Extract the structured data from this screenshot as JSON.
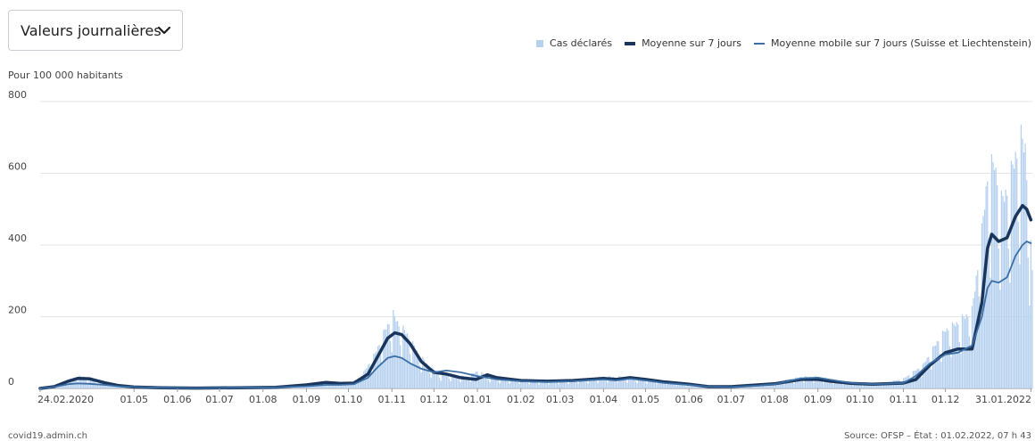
{
  "controls": {
    "dropdown_label": "Valeurs journalières",
    "dropdown_icon": "chevron-down-icon"
  },
  "legend": {
    "cases_label": "Cas déclarés",
    "avg_label": "Moyenne sur 7 jours",
    "ch_label": "Moyenne mobile sur 7 jours (Suisse et Liechtenstein)"
  },
  "colors": {
    "bars": "#b5d0ee",
    "avg_line": "#1a355b",
    "ch_line": "#3a6ea5",
    "grid": "#e3e3e3",
    "axis": "#9a9a9a"
  },
  "chart_data": {
    "type": "bar",
    "unit_label": "Pour 100 000 habitants",
    "ylim": [
      0,
      800
    ],
    "y_ticks": [
      0,
      200,
      400,
      600,
      800
    ],
    "grid": true,
    "legend_position": "top-right",
    "x_start": "2020-02-24",
    "x_end": "2022-02-01",
    "x_ticks": [
      {
        "date": "2020-02-24",
        "label": "24.02.2020"
      },
      {
        "date": "2020-05-01",
        "label": "01.05"
      },
      {
        "date": "2020-06-01",
        "label": "01.06"
      },
      {
        "date": "2020-07-01",
        "label": "01.07"
      },
      {
        "date": "2020-08-01",
        "label": "01.08"
      },
      {
        "date": "2020-09-01",
        "label": "01.09"
      },
      {
        "date": "2020-10-01",
        "label": "01.10"
      },
      {
        "date": "2020-11-01",
        "label": "01.11"
      },
      {
        "date": "2020-12-01",
        "label": "01.12"
      },
      {
        "date": "2021-01-01",
        "label": "01.01"
      },
      {
        "date": "2021-02-01",
        "label": "01.02"
      },
      {
        "date": "2021-03-01",
        "label": "01.03"
      },
      {
        "date": "2021-04-01",
        "label": "01.04"
      },
      {
        "date": "2021-05-01",
        "label": "01.05"
      },
      {
        "date": "2021-06-01",
        "label": "01.06"
      },
      {
        "date": "2021-07-01",
        "label": "01.07"
      },
      {
        "date": "2021-08-01",
        "label": "01.08"
      },
      {
        "date": "2021-09-01",
        "label": "01.09"
      },
      {
        "date": "2021-10-01",
        "label": "01.10"
      },
      {
        "date": "2021-11-01",
        "label": "01.11"
      },
      {
        "date": "2021-12-01",
        "label": "01.12"
      },
      {
        "date": "2022-01-31",
        "label": "31.01.2022"
      }
    ],
    "series": [
      {
        "name": "Cas déclarés",
        "kind": "bar",
        "points": [
          [
            "2020-02-24",
            0
          ],
          [
            "2020-03-05",
            6
          ],
          [
            "2020-03-14",
            20
          ],
          [
            "2020-03-22",
            32
          ],
          [
            "2020-03-28",
            30
          ],
          [
            "2020-04-05",
            18
          ],
          [
            "2020-04-15",
            9
          ],
          [
            "2020-04-25",
            5
          ],
          [
            "2020-05-10",
            2
          ],
          [
            "2020-06-01",
            1
          ],
          [
            "2020-07-01",
            2
          ],
          [
            "2020-08-01",
            3
          ],
          [
            "2020-08-20",
            5
          ],
          [
            "2020-09-01",
            8
          ],
          [
            "2020-09-20",
            18
          ],
          [
            "2020-10-01",
            12
          ],
          [
            "2020-10-10",
            30
          ],
          [
            "2020-10-20",
            90
          ],
          [
            "2020-10-27",
            150
          ],
          [
            "2020-11-02",
            190
          ],
          [
            "2020-11-06",
            165
          ],
          [
            "2020-11-12",
            140
          ],
          [
            "2020-11-20",
            90
          ],
          [
            "2020-11-28",
            55
          ],
          [
            "2020-12-05",
            40
          ],
          [
            "2020-12-15",
            35
          ],
          [
            "2020-12-25",
            30
          ],
          [
            "2021-01-01",
            45
          ],
          [
            "2021-01-10",
            30
          ],
          [
            "2021-01-25",
            25
          ],
          [
            "2021-02-15",
            20
          ],
          [
            "2021-03-01",
            22
          ],
          [
            "2021-03-20",
            25
          ],
          [
            "2021-04-01",
            30
          ],
          [
            "2021-04-15",
            30
          ],
          [
            "2021-05-01",
            25
          ],
          [
            "2021-05-15",
            20
          ],
          [
            "2021-06-01",
            10
          ],
          [
            "2021-06-20",
            5
          ],
          [
            "2021-07-01",
            5
          ],
          [
            "2021-07-20",
            10
          ],
          [
            "2021-08-01",
            15
          ],
          [
            "2021-08-20",
            30
          ],
          [
            "2021-09-01",
            30
          ],
          [
            "2021-09-15",
            20
          ],
          [
            "2021-10-01",
            12
          ],
          [
            "2021-10-20",
            15
          ],
          [
            "2021-11-01",
            25
          ],
          [
            "2021-11-15",
            60
          ],
          [
            "2021-11-25",
            120
          ],
          [
            "2021-12-01",
            150
          ],
          [
            "2021-12-10",
            170
          ],
          [
            "2021-12-20",
            200
          ],
          [
            "2021-12-27",
            400
          ],
          [
            "2021-12-31",
            550
          ],
          [
            "2022-01-05",
            580
          ],
          [
            "2022-01-10",
            480
          ],
          [
            "2022-01-15",
            520
          ],
          [
            "2022-01-20",
            600
          ],
          [
            "2022-01-24",
            640
          ],
          [
            "2022-01-27",
            620
          ],
          [
            "2022-01-30",
            420
          ],
          [
            "2022-02-01",
            300
          ]
        ]
      },
      {
        "name": "Moyenne sur 7 jours",
        "kind": "line",
        "points": [
          [
            "2020-02-24",
            0
          ],
          [
            "2020-03-05",
            5
          ],
          [
            "2020-03-15",
            20
          ],
          [
            "2020-03-22",
            28
          ],
          [
            "2020-03-30",
            27
          ],
          [
            "2020-04-10",
            16
          ],
          [
            "2020-04-20",
            8
          ],
          [
            "2020-05-01",
            4
          ],
          [
            "2020-05-20",
            2
          ],
          [
            "2020-06-15",
            1
          ],
          [
            "2020-07-15",
            2
          ],
          [
            "2020-08-10",
            3
          ],
          [
            "2020-09-01",
            10
          ],
          [
            "2020-09-15",
            17
          ],
          [
            "2020-09-25",
            14
          ],
          [
            "2020-10-05",
            15
          ],
          [
            "2020-10-15",
            40
          ],
          [
            "2020-10-22",
            90
          ],
          [
            "2020-10-29",
            140
          ],
          [
            "2020-11-03",
            155
          ],
          [
            "2020-11-08",
            150
          ],
          [
            "2020-11-14",
            125
          ],
          [
            "2020-11-22",
            75
          ],
          [
            "2020-12-01",
            45
          ],
          [
            "2020-12-10",
            40
          ],
          [
            "2020-12-20",
            30
          ],
          [
            "2020-12-31",
            25
          ],
          [
            "2021-01-08",
            38
          ],
          [
            "2021-01-15",
            30
          ],
          [
            "2021-02-01",
            22
          ],
          [
            "2021-02-20",
            20
          ],
          [
            "2021-03-10",
            22
          ],
          [
            "2021-04-01",
            28
          ],
          [
            "2021-04-10",
            25
          ],
          [
            "2021-04-20",
            30
          ],
          [
            "2021-05-01",
            25
          ],
          [
            "2021-05-15",
            18
          ],
          [
            "2021-06-01",
            12
          ],
          [
            "2021-06-15",
            5
          ],
          [
            "2021-07-01",
            5
          ],
          [
            "2021-07-20",
            10
          ],
          [
            "2021-08-01",
            13
          ],
          [
            "2021-08-20",
            25
          ],
          [
            "2021-09-01",
            25
          ],
          [
            "2021-09-10",
            20
          ],
          [
            "2021-09-25",
            14
          ],
          [
            "2021-10-10",
            12
          ],
          [
            "2021-11-01",
            15
          ],
          [
            "2021-11-10",
            25
          ],
          [
            "2021-11-20",
            65
          ],
          [
            "2021-12-01",
            100
          ],
          [
            "2021-12-10",
            110
          ],
          [
            "2021-12-20",
            110
          ],
          [
            "2021-12-27",
            240
          ],
          [
            "2021-12-31",
            390
          ],
          [
            "2022-01-03",
            430
          ],
          [
            "2022-01-08",
            410
          ],
          [
            "2022-01-14",
            420
          ],
          [
            "2022-01-20",
            480
          ],
          [
            "2022-01-25",
            510
          ],
          [
            "2022-01-28",
            500
          ],
          [
            "2022-01-31",
            470
          ]
        ]
      },
      {
        "name": "Moyenne mobile sur 7 jours (Suisse et Liechtenstein)",
        "kind": "line",
        "points": [
          [
            "2020-02-24",
            0
          ],
          [
            "2020-03-05",
            4
          ],
          [
            "2020-03-15",
            12
          ],
          [
            "2020-03-22",
            14
          ],
          [
            "2020-03-30",
            13
          ],
          [
            "2020-04-10",
            10
          ],
          [
            "2020-04-20",
            6
          ],
          [
            "2020-05-01",
            4
          ],
          [
            "2020-05-20",
            2
          ],
          [
            "2020-06-15",
            1
          ],
          [
            "2020-07-15",
            2
          ],
          [
            "2020-08-10",
            3
          ],
          [
            "2020-09-01",
            6
          ],
          [
            "2020-09-15",
            10
          ],
          [
            "2020-09-25",
            10
          ],
          [
            "2020-10-05",
            12
          ],
          [
            "2020-10-15",
            30
          ],
          [
            "2020-10-22",
            60
          ],
          [
            "2020-10-29",
            85
          ],
          [
            "2020-11-03",
            90
          ],
          [
            "2020-11-08",
            85
          ],
          [
            "2020-11-14",
            70
          ],
          [
            "2020-11-22",
            55
          ],
          [
            "2020-12-01",
            45
          ],
          [
            "2020-12-10",
            50
          ],
          [
            "2020-12-20",
            45
          ],
          [
            "2020-12-31",
            35
          ],
          [
            "2021-01-08",
            30
          ],
          [
            "2021-01-15",
            25
          ],
          [
            "2021-02-01",
            20
          ],
          [
            "2021-02-20",
            18
          ],
          [
            "2021-03-10",
            20
          ],
          [
            "2021-04-01",
            25
          ],
          [
            "2021-04-10",
            22
          ],
          [
            "2021-04-20",
            27
          ],
          [
            "2021-05-01",
            22
          ],
          [
            "2021-05-15",
            15
          ],
          [
            "2021-06-01",
            10
          ],
          [
            "2021-06-15",
            5
          ],
          [
            "2021-07-01",
            4
          ],
          [
            "2021-07-20",
            8
          ],
          [
            "2021-08-01",
            12
          ],
          [
            "2021-08-20",
            28
          ],
          [
            "2021-09-01",
            30
          ],
          [
            "2021-09-10",
            24
          ],
          [
            "2021-09-25",
            15
          ],
          [
            "2021-10-10",
            12
          ],
          [
            "2021-11-01",
            15
          ],
          [
            "2021-11-10",
            35
          ],
          [
            "2021-11-20",
            70
          ],
          [
            "2021-12-01",
            95
          ],
          [
            "2021-12-10",
            100
          ],
          [
            "2021-12-20",
            120
          ],
          [
            "2021-12-27",
            200
          ],
          [
            "2021-12-31",
            280
          ],
          [
            "2022-01-03",
            300
          ],
          [
            "2022-01-08",
            295
          ],
          [
            "2022-01-14",
            310
          ],
          [
            "2022-01-20",
            370
          ],
          [
            "2022-01-25",
            400
          ],
          [
            "2022-01-28",
            410
          ],
          [
            "2022-01-31",
            405
          ]
        ]
      }
    ]
  },
  "footer": {
    "site": "covid19.admin.ch",
    "source": "Source: OFSP – État : 01.02.2022, 07 h 43"
  }
}
